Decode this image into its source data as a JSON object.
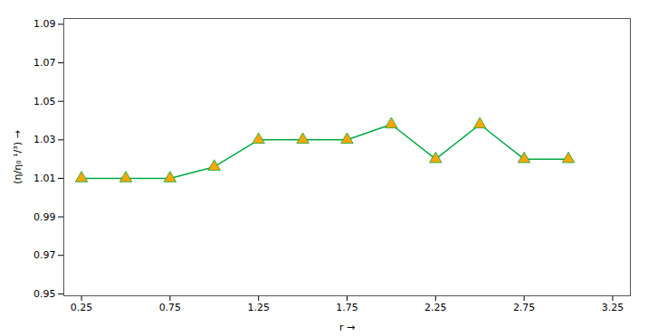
{
  "chart_data": {
    "type": "line",
    "x": [
      0.25,
      0.5,
      0.75,
      1.0,
      1.25,
      1.5,
      1.75,
      2.0,
      2.25,
      2.5,
      2.75,
      3.0
    ],
    "values": [
      1.01,
      1.01,
      1.01,
      1.016,
      1.03,
      1.03,
      1.03,
      1.038,
      1.02,
      1.038,
      1.02,
      1.02
    ],
    "color": "#00aa44",
    "marker": "triangle",
    "xlabel": "r",
    "ylabel": "(η/η₀ ¹/³)",
    "xlim": [
      0.15,
      3.35
    ],
    "ylim": [
      0.949,
      1.093
    ],
    "xticks": [
      0.25,
      0.75,
      1.25,
      1.75,
      2.25,
      2.75,
      3.25
    ],
    "yticks": [
      0.95,
      0.97,
      0.99,
      1.01,
      1.03,
      1.05,
      1.07,
      1.09
    ],
    "grid": false
  }
}
